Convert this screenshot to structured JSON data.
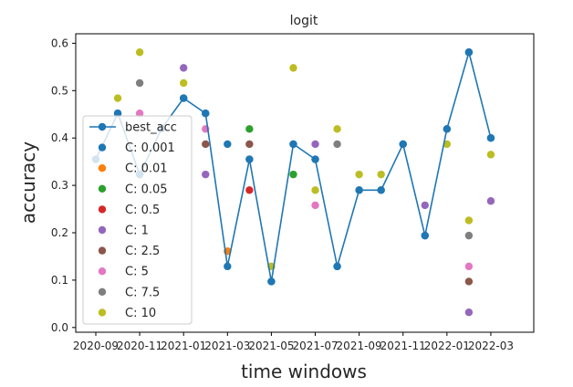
{
  "chart_data": {
    "type": "scatter",
    "title": "logit",
    "xlabel": "time windows",
    "ylabel": "accuracy",
    "ylim": [
      -0.01,
      0.62
    ],
    "x_ticks": [
      "2020-09",
      "2020-11",
      "2021-01",
      "2021-03",
      "2021-05",
      "2021-07",
      "2021-09",
      "2021-11",
      "2022-01",
      "2022-03"
    ],
    "y_ticks": [
      "0.0",
      "0.1",
      "0.2",
      "0.3",
      "0.4",
      "0.5",
      "0.6"
    ],
    "grid": false,
    "legend_position": "center-left",
    "x": [
      "2020-09-01",
      "2020-10-01",
      "2020-11-01",
      "2020-12-01",
      "2021-01-01",
      "2021-02-01",
      "2021-03-01",
      "2021-04-01",
      "2021-05-01",
      "2021-06-01",
      "2021-07-01",
      "2021-08-01",
      "2021-09-01",
      "2021-10-01",
      "2021-11-01",
      "2021-12-01",
      "2022-01-01",
      "2022-02-01",
      "2022-03-01",
      "2022-04-01"
    ],
    "series": [
      {
        "name": "best_acc",
        "kind": "line",
        "color": "#1f77b4",
        "values": [
          0.355,
          0.452,
          0.323,
          0.42,
          0.484,
          0.452,
          0.129,
          0.355,
          0.097,
          0.387,
          0.355,
          0.129,
          0.29,
          0.29,
          0.387,
          0.194,
          0.419,
          0.581,
          0.4,
          null
        ]
      },
      {
        "name": "C: 0.001",
        "kind": "scatter",
        "color": "#1f77b4",
        "values": [
          0.355,
          0.452,
          0.323,
          0.42,
          0.484,
          0.452,
          0.387,
          0.355,
          0.097,
          0.387,
          0.355,
          0.129,
          0.29,
          0.29,
          0.387,
          0.194,
          0.419,
          0.581,
          0.4,
          null
        ]
      },
      {
        "name": "C: 0.01",
        "kind": "scatter",
        "color": "#ff7f0e",
        "values": [
          null,
          null,
          null,
          null,
          null,
          null,
          0.161,
          null,
          null,
          null,
          null,
          null,
          null,
          null,
          null,
          null,
          null,
          null,
          null,
          null
        ]
      },
      {
        "name": "C: 0.05",
        "kind": "scatter",
        "color": "#2ca02c",
        "values": [
          null,
          null,
          null,
          null,
          null,
          null,
          null,
          0.419,
          null,
          0.323,
          null,
          null,
          null,
          null,
          null,
          null,
          null,
          null,
          null,
          null
        ]
      },
      {
        "name": "C: 0.5",
        "kind": "scatter",
        "color": "#d62728",
        "values": [
          null,
          null,
          null,
          null,
          null,
          null,
          null,
          0.29,
          null,
          null,
          null,
          null,
          null,
          null,
          null,
          null,
          null,
          null,
          null,
          null
        ]
      },
      {
        "name": "C: 1",
        "kind": "scatter",
        "color": "#9467bd",
        "values": [
          null,
          null,
          null,
          null,
          0.548,
          0.323,
          null,
          null,
          null,
          null,
          0.387,
          null,
          null,
          null,
          null,
          0.258,
          null,
          0.032,
          0.267,
          null
        ]
      },
      {
        "name": "C: 2.5",
        "kind": "scatter",
        "color": "#8c564b",
        "values": [
          null,
          null,
          null,
          null,
          null,
          0.387,
          null,
          0.387,
          null,
          null,
          null,
          null,
          null,
          null,
          null,
          null,
          null,
          0.097,
          null,
          null
        ]
      },
      {
        "name": "C: 5",
        "kind": "scatter",
        "color": "#e377c2",
        "values": [
          null,
          null,
          0.452,
          null,
          null,
          0.419,
          null,
          null,
          null,
          null,
          0.258,
          null,
          null,
          null,
          null,
          null,
          null,
          0.129,
          null,
          null
        ]
      },
      {
        "name": "C: 7.5",
        "kind": "scatter",
        "color": "#7f7f7f",
        "values": [
          null,
          null,
          0.516,
          null,
          null,
          null,
          null,
          null,
          null,
          null,
          null,
          0.387,
          null,
          null,
          null,
          null,
          null,
          0.194,
          null,
          null
        ]
      },
      {
        "name": "C: 10",
        "kind": "scatter",
        "color": "#bcbd22",
        "values": [
          null,
          0.484,
          0.581,
          null,
          0.516,
          null,
          null,
          null,
          0.129,
          0.548,
          0.29,
          0.419,
          0.323,
          0.323,
          null,
          null,
          0.387,
          0.226,
          0.365,
          null
        ]
      }
    ]
  }
}
